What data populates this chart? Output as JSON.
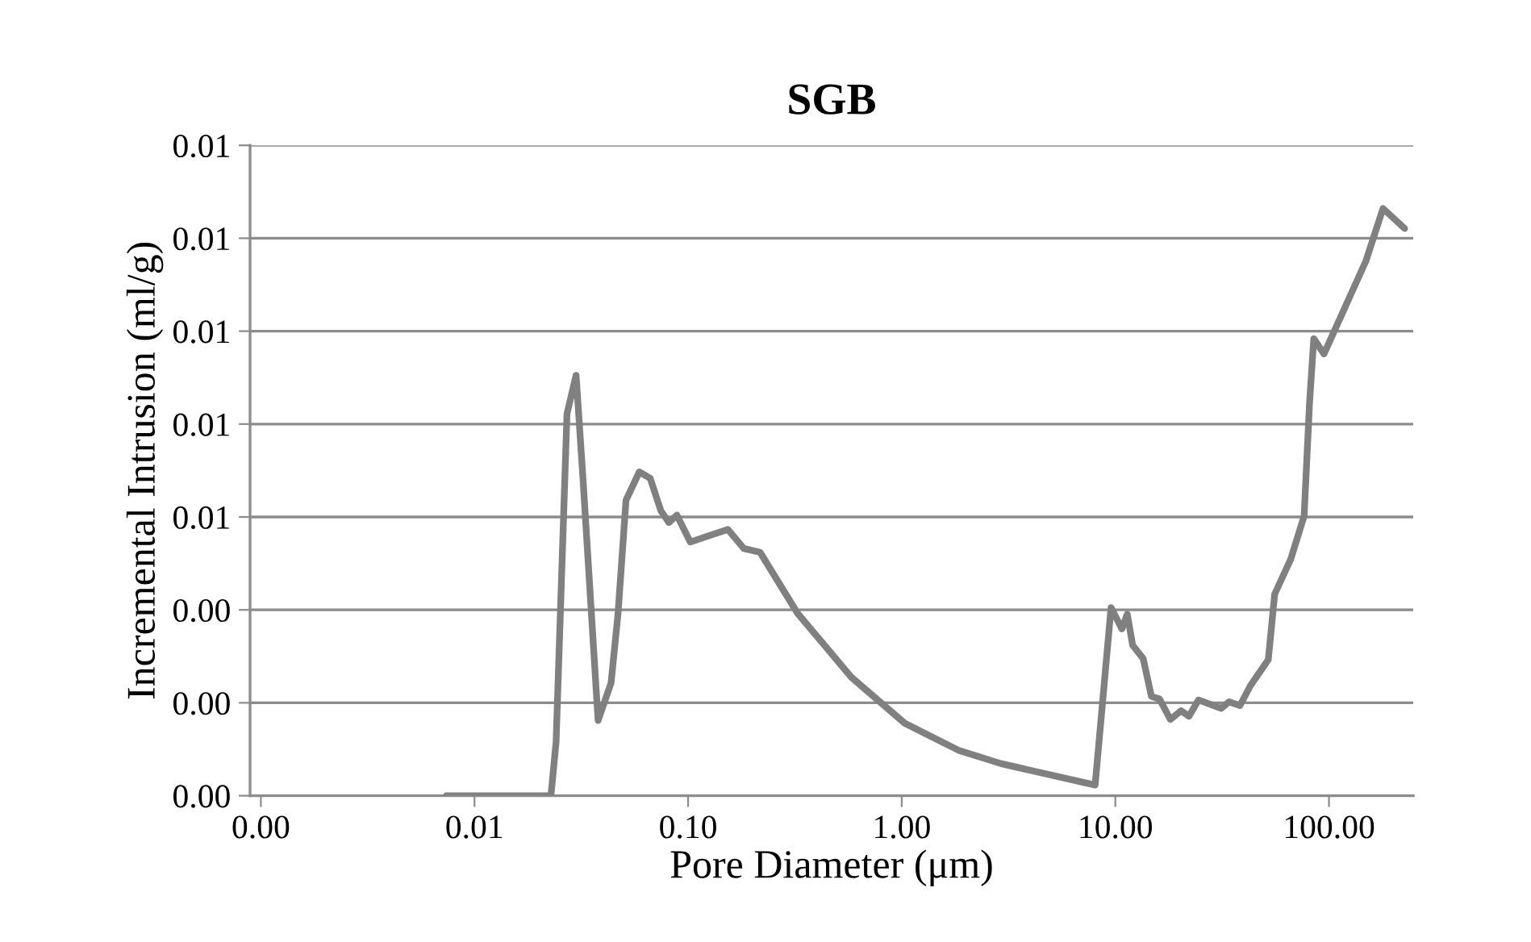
{
  "chart_data": {
    "type": "line",
    "title": "SGB",
    "xlabel": "Pore Diameter (μm)",
    "ylabel": "Incremental Intrusion (ml/g)",
    "log": "x",
    "grid": "y",
    "marker": "none",
    "line_style": "solid",
    "xlim": [
      0.00089,
      248
    ],
    "xticks": [
      {
        "value": 0.001,
        "label": "0.00"
      },
      {
        "value": 0.01,
        "label": "0.01"
      },
      {
        "value": 0.1,
        "label": "0.10"
      },
      {
        "value": 1,
        "label": "1.00"
      },
      {
        "value": 10,
        "label": "10.00"
      },
      {
        "value": 100,
        "label": "100.00"
      }
    ],
    "ylim": [
      0,
      0.014
    ],
    "yticks": [
      {
        "value": 0,
        "label": "0.00"
      },
      {
        "value": 0.002,
        "label": "0.00"
      },
      {
        "value": 0.004,
        "label": "0.00"
      },
      {
        "value": 0.006,
        "label": "0.01"
      },
      {
        "value": 0.008,
        "label": "0.01"
      },
      {
        "value": 0.01,
        "label": "0.01"
      },
      {
        "value": 0.012,
        "label": "0.01"
      },
      {
        "value": 0.014,
        "label": "0.01"
      }
    ],
    "x": [
      0.00738,
      0.0228,
      0.0241,
      0.0271,
      0.0299,
      0.0322,
      0.0379,
      0.0436,
      0.047,
      0.0512,
      0.0591,
      0.0665,
      0.0746,
      0.0813,
      0.0886,
      0.1024,
      0.1184,
      0.1535,
      0.1824,
      0.2172,
      0.325,
      0.581,
      1.033,
      1.38,
      1.84,
      2.92,
      8.04,
      9.55,
      10.73,
      11.37,
      12.05,
      13.5,
      14.75,
      16.1,
      18.1,
      20.3,
      22.1,
      24.5,
      31.3,
      34.1,
      38.3,
      42.9,
      52.0,
      55.7,
      66.2,
      76.5,
      81.1,
      84.9,
      94.8,
      148.9,
      179,
      226
    ],
    "series": [
      {
        "color": "#808080",
        "values": [
          0,
          0,
          0.00116,
          0.00822,
          0.00905,
          0.00683,
          0.00162,
          0.00243,
          0.00393,
          0.00636,
          0.00697,
          0.00683,
          0.00613,
          0.00588,
          0.00604,
          0.00546,
          0.00556,
          0.00573,
          0.00532,
          0.00524,
          0.00393,
          0.00255,
          0.00156,
          0.00127,
          0.00098,
          0.00069,
          0.00023,
          0.00405,
          0.00359,
          0.00391,
          0.00324,
          0.00295,
          0.00214,
          0.00208,
          0.00164,
          0.00183,
          0.00171,
          0.00206,
          0.00188,
          0.00202,
          0.00194,
          0.00237,
          0.00293,
          0.00434,
          0.00509,
          0.00602,
          0.00845,
          0.00984,
          0.00951,
          0.01151,
          0.01264,
          0.01221
        ]
      }
    ]
  }
}
